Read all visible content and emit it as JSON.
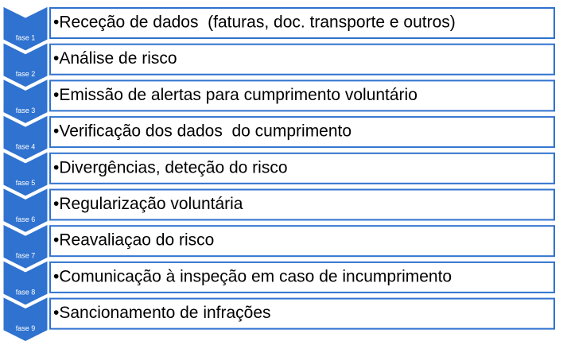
{
  "steps": [
    {
      "phase": "fase 1",
      "text": "•Receção de dados  (faturas, doc. transporte e outros)"
    },
    {
      "phase": "fase 2",
      "text": "•Análise de risco"
    },
    {
      "phase": "fase 3",
      "text": "•Emissão de alertas para cumprimento voluntário"
    },
    {
      "phase": "fase 4",
      "text": "•Verificação dos dados  do cumprimento"
    },
    {
      "phase": "fase 5",
      "text": "•Divergências, deteção do risco"
    },
    {
      "phase": "fase 6",
      "text": "•Regularização voluntária"
    },
    {
      "phase": "fase 7",
      "text": "•Reavaliaçao do risco"
    },
    {
      "phase": "fase 8",
      "text": "•Comunicação à inspeção em caso de incumprimento"
    },
    {
      "phase": "fase 9",
      "text": "•Sancionamento de infrações"
    }
  ]
}
